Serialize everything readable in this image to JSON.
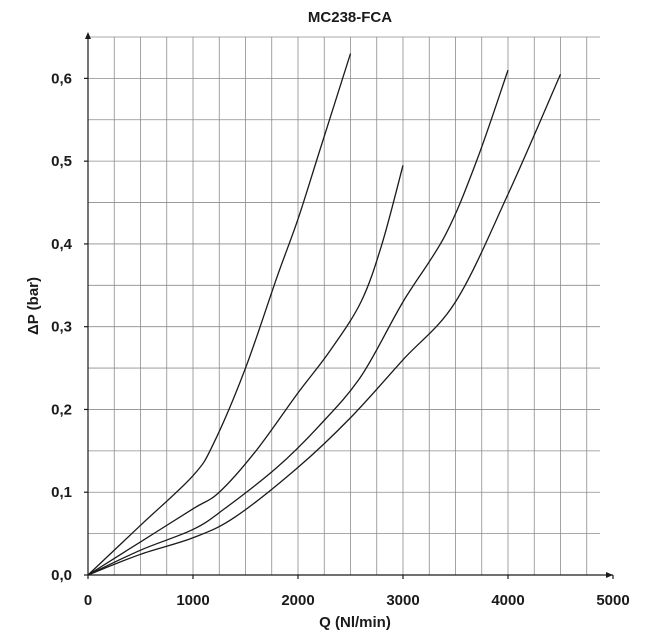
{
  "chart_data": {
    "type": "line",
    "title": "MC238-FCA",
    "xlabel": "Q (Nl/min)",
    "ylabel": "ΔP  (bar)",
    "xlim": [
      0,
      5000
    ],
    "ylim": [
      0,
      0.65
    ],
    "x_ticks": [
      0,
      1000,
      2000,
      3000,
      4000,
      5000
    ],
    "x_tick_labels": [
      "0",
      "1000",
      "2000",
      "3000",
      "4000",
      "5000"
    ],
    "y_ticks": [
      0,
      0.1,
      0.2,
      0.3,
      0.4,
      0.5,
      0.6
    ],
    "y_tick_labels": [
      "0,0",
      "0,1",
      "0,2",
      "0,3",
      "0,4",
      "0,5",
      "0,6"
    ],
    "x_minor_step": 250,
    "y_minor_step": 0.05,
    "grid": true,
    "series": [
      {
        "x": [
          0,
          500,
          1000,
          1200,
          1500,
          1800,
          2000,
          2200,
          2500
        ],
        "y": [
          0,
          0.06,
          0.12,
          0.16,
          0.25,
          0.36,
          0.43,
          0.51,
          0.63
        ]
      },
      {
        "x": [
          0,
          500,
          1000,
          1250,
          1600,
          2000,
          2300,
          2600,
          2800,
          3000
        ],
        "y": [
          0,
          0.04,
          0.08,
          0.1,
          0.15,
          0.22,
          0.27,
          0.33,
          0.4,
          0.495
        ]
      },
      {
        "x": [
          0,
          500,
          1000,
          1300,
          1800,
          2200,
          2600,
          3000,
          3400,
          3700,
          4000
        ],
        "y": [
          0,
          0.03,
          0.055,
          0.08,
          0.13,
          0.18,
          0.24,
          0.33,
          0.41,
          0.5,
          0.61
        ]
      },
      {
        "x": [
          0,
          500,
          1000,
          1400,
          2000,
          2500,
          3000,
          3500,
          4000,
          4500
        ],
        "y": [
          0,
          0.025,
          0.045,
          0.07,
          0.13,
          0.19,
          0.26,
          0.33,
          0.46,
          0.605
        ]
      }
    ]
  }
}
